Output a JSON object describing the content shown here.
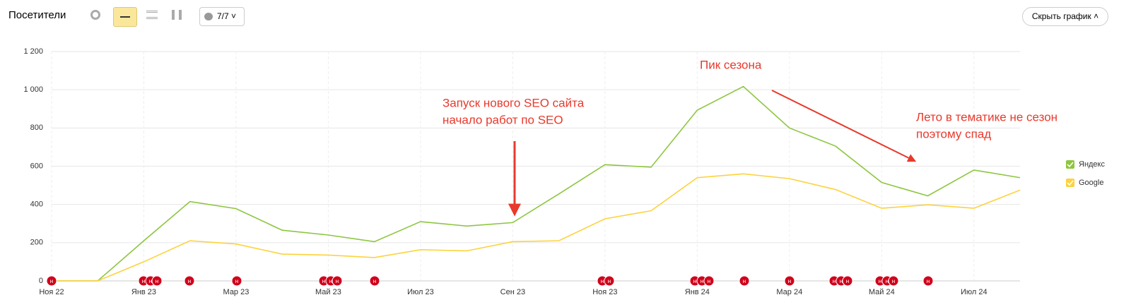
{
  "header": {
    "title": "Посетители",
    "filter": "7/7",
    "hide_button": "Скрыть график"
  },
  "chart_data": {
    "type": "line",
    "categories": [
      "Ноя 22",
      null,
      "Янв 23",
      null,
      "Мар 23",
      null,
      "Май 23",
      null,
      "Июл 23",
      null,
      "Сен 23",
      null,
      "Ноя 23",
      null,
      "Янв 24",
      null,
      "Мар 24",
      null,
      "Май 24",
      null,
      "Июл 24",
      null
    ],
    "series": [
      {
        "name": "Яндекс",
        "color": "#8dc63f",
        "values": [
          0,
          0,
          210,
          415,
          378,
          265,
          240,
          205,
          310,
          287,
          305,
          455,
          608,
          595,
          893,
          1017,
          800,
          705,
          515,
          445,
          580,
          540
        ]
      },
      {
        "name": "Google",
        "color": "#fdd23d",
        "values": [
          0,
          0,
          100,
          210,
          193,
          140,
          135,
          122,
          163,
          157,
          205,
          210,
          325,
          367,
          540,
          560,
          535,
          478,
          380,
          398,
          380,
          475
        ]
      }
    ],
    "ylim": [
      0,
      1200
    ],
    "yticks": [
      0,
      200,
      400,
      600,
      800,
      {
        "value": 1000,
        "label": "1 000"
      },
      {
        "value": 1200,
        "label": "1 200"
      }
    ],
    "grid": true,
    "legend": "right",
    "event_label": "н",
    "annotations": [
      {
        "lines": [
          "Пик сезона"
        ]
      },
      {
        "lines": [
          "Запуск нового SEO сайта",
          "начало работ по SEO"
        ]
      },
      {
        "lines": [
          "Лето в тематике не сезон",
          "поэтому спад"
        ]
      }
    ]
  }
}
